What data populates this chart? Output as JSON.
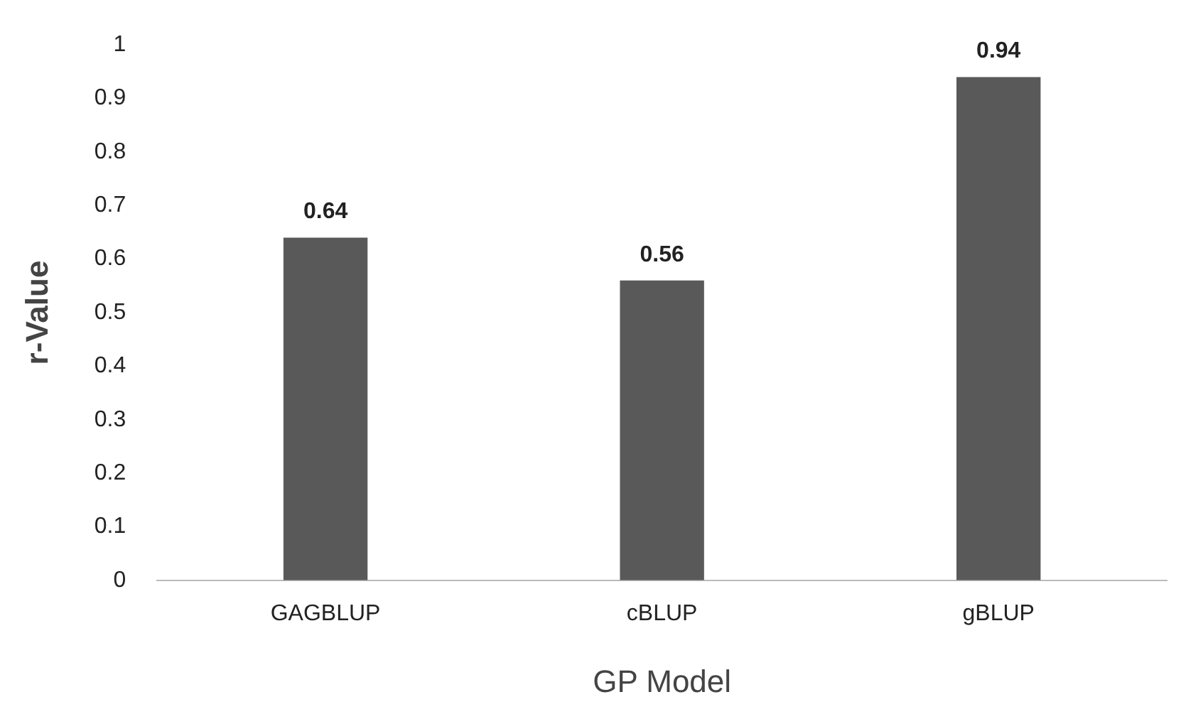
{
  "chart_data": {
    "type": "bar",
    "xlabel": "GP Model",
    "ylabel": "r-Value",
    "categories": [
      "GAGBLUP",
      "cBLUP",
      "gBLUP"
    ],
    "values": [
      0.64,
      0.56,
      0.94
    ],
    "color": "#595959",
    "ylim": [
      0,
      1
    ],
    "yticks": [
      0,
      0.1,
      0.2,
      0.3,
      0.4,
      0.5,
      0.6,
      0.7,
      0.8,
      0.9,
      1
    ],
    "grid": false,
    "legend": false,
    "data_labels": true
  }
}
